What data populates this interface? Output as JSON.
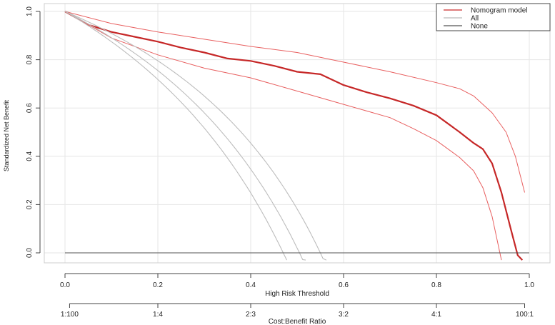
{
  "chart_data": {
    "type": "line",
    "title": "",
    "xlabel": "High Risk Threshold",
    "xlabel2": "Cost:Benefit Ratio",
    "ylabel": "Standardized Net Benefit",
    "xlim": [
      0,
      1
    ],
    "ylim": [
      -0.03,
      1.0
    ],
    "grid": true,
    "legend_position": "top-right",
    "x_ticks": [
      0.0,
      0.2,
      0.4,
      0.6,
      0.8,
      1.0
    ],
    "x_tick_labels": [
      "0.0",
      "0.2",
      "0.4",
      "0.6",
      "0.8",
      "1.0"
    ],
    "y_ticks": [
      0.0,
      0.2,
      0.4,
      0.6,
      0.8,
      1.0
    ],
    "y_tick_labels": [
      "0.0",
      "0.2",
      "0.4",
      "0.6",
      "0.8",
      "1.0"
    ],
    "ratio_ticks": [
      0.0099,
      0.2,
      0.4,
      0.6,
      0.8,
      0.99
    ],
    "ratio_tick_labels": [
      "1:100",
      "1:4",
      "2:3",
      "3:2",
      "4:1",
      "100:1"
    ],
    "legend": [
      {
        "name": "Nomogram model",
        "color": "#cc2a2a"
      },
      {
        "name": "All",
        "color": "#bbbbbb"
      },
      {
        "name": "None",
        "color": "#555555"
      }
    ],
    "series": [
      {
        "name": "Nomogram model",
        "role": "main",
        "color": "#c62828",
        "x": [
          0.0,
          0.05,
          0.1,
          0.15,
          0.2,
          0.25,
          0.3,
          0.35,
          0.4,
          0.45,
          0.5,
          0.55,
          0.6,
          0.65,
          0.7,
          0.75,
          0.8,
          0.85,
          0.88,
          0.9,
          0.92,
          0.94,
          0.96,
          0.975,
          0.985
        ],
        "y": [
          1.0,
          0.945,
          0.915,
          0.895,
          0.875,
          0.85,
          0.83,
          0.805,
          0.795,
          0.775,
          0.75,
          0.74,
          0.695,
          0.665,
          0.64,
          0.61,
          0.57,
          0.5,
          0.455,
          0.43,
          0.37,
          0.25,
          0.1,
          -0.01,
          -0.03
        ]
      },
      {
        "name": "Nomogram model upper CI",
        "role": "ci",
        "color": "#e86060",
        "x": [
          0.0,
          0.1,
          0.2,
          0.3,
          0.4,
          0.5,
          0.6,
          0.7,
          0.8,
          0.85,
          0.88,
          0.92,
          0.95,
          0.97,
          0.99
        ],
        "y": [
          1.0,
          0.95,
          0.915,
          0.885,
          0.855,
          0.83,
          0.79,
          0.75,
          0.705,
          0.68,
          0.65,
          0.58,
          0.5,
          0.4,
          0.25
        ]
      },
      {
        "name": "Nomogram model lower CI",
        "role": "ci",
        "color": "#e86060",
        "x": [
          0.0,
          0.1,
          0.2,
          0.3,
          0.4,
          0.5,
          0.6,
          0.7,
          0.75,
          0.8,
          0.85,
          0.88,
          0.9,
          0.92,
          0.94
        ],
        "y": [
          1.0,
          0.89,
          0.82,
          0.765,
          0.725,
          0.67,
          0.615,
          0.56,
          0.515,
          0.465,
          0.395,
          0.34,
          0.27,
          0.15,
          -0.03
        ]
      },
      {
        "name": "All",
        "role": "all",
        "color": "#bdbdbd",
        "prevalence": 0.47
      },
      {
        "name": "All",
        "role": "all",
        "color": "#bdbdbd",
        "prevalence": 0.505
      },
      {
        "name": "All",
        "role": "all",
        "color": "#bdbdbd",
        "prevalence": 0.55
      },
      {
        "name": "None",
        "role": "none",
        "color": "#555555",
        "x": [
          0.0,
          1.0
        ],
        "y": [
          0.0,
          0.0
        ]
      }
    ]
  }
}
